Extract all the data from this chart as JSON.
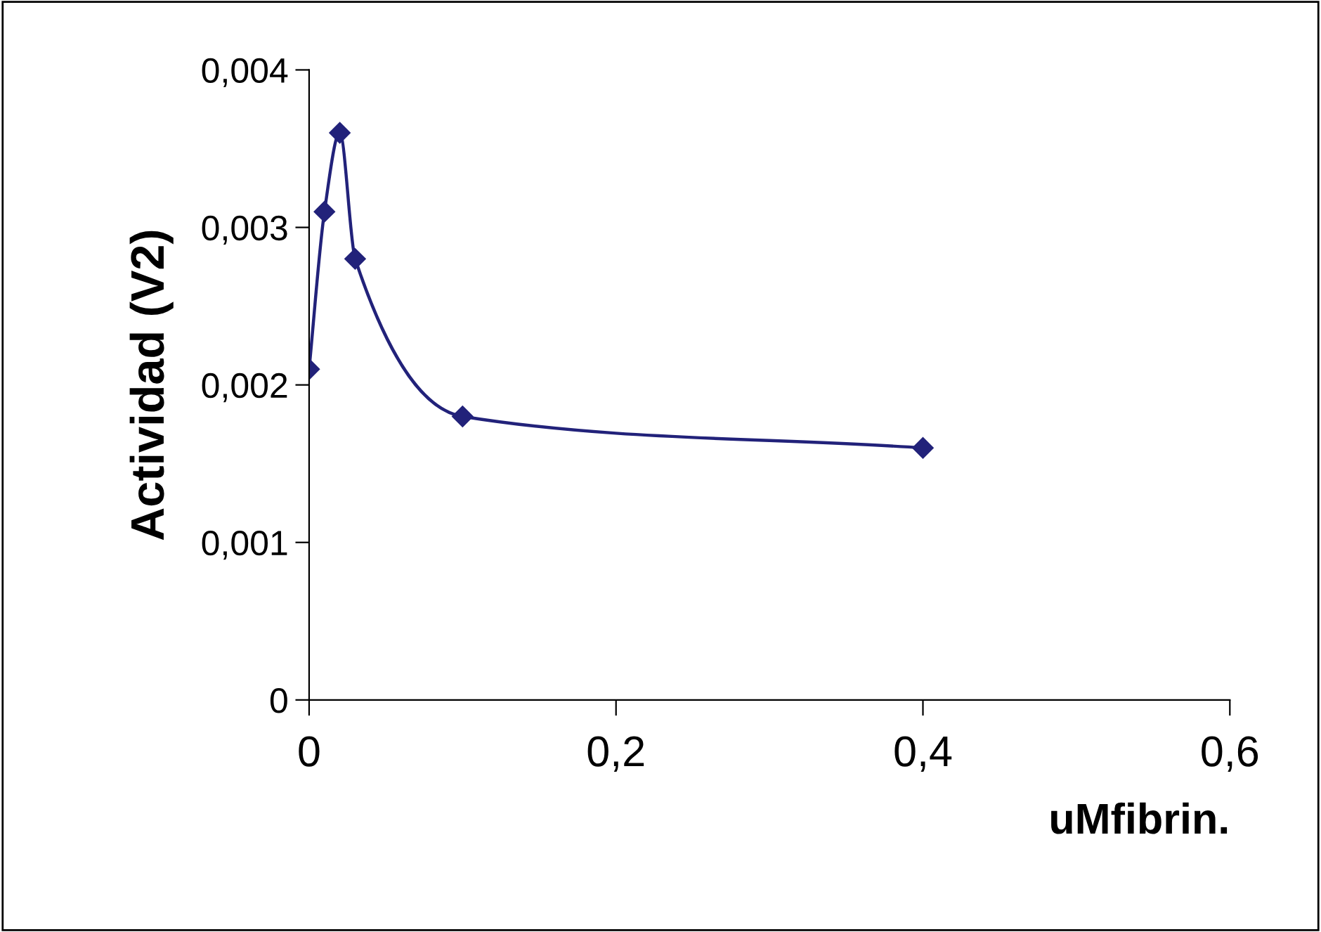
{
  "chart_data": {
    "type": "line",
    "xlabel": "uMfibrin.",
    "ylabel": "Actividad (V2)",
    "x": [
      0,
      0.01,
      0.02,
      0.03,
      0.1,
      0.4
    ],
    "series": [
      {
        "color": "#22227a",
        "values": [
          0.0021,
          0.0031,
          0.0036,
          0.0028,
          0.0018,
          0.0016
        ]
      }
    ],
    "xlim": [
      0,
      0.6
    ],
    "ylim": [
      0,
      0.004
    ],
    "xticks": [
      0,
      {
        "value": 0.2,
        "label": "0,2"
      },
      {
        "value": 0.4,
        "label": "0,4"
      },
      {
        "value": 0.6,
        "label": "0,6"
      }
    ],
    "yticks": [
      0,
      {
        "value": 0.001,
        "label": "0,001"
      },
      {
        "value": 0.002,
        "label": "0,002"
      },
      {
        "value": 0.003,
        "label": "0,003"
      },
      {
        "value": 0.004,
        "label": "0,004"
      }
    ],
    "marker": "diamond",
    "line_style": "solid",
    "grid": false,
    "legend": false
  }
}
